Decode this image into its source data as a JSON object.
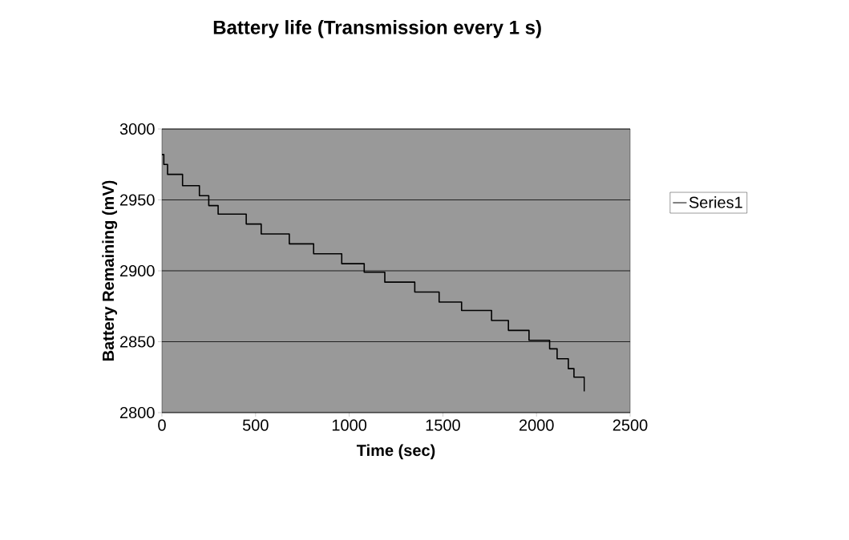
{
  "chart_data": {
    "type": "step",
    "title": "Battery life (Transmission every 1 s)",
    "xlabel": "Time (sec)",
    "ylabel": "Battery Remaining (mV)",
    "x": [
      0,
      10,
      30,
      110,
      200,
      250,
      300,
      450,
      530,
      680,
      810,
      960,
      1080,
      1190,
      1350,
      1480,
      1600,
      1760,
      1850,
      1960,
      2070,
      2110,
      2170,
      2200,
      2255
    ],
    "series": [
      {
        "name": "Series1",
        "color": "#000000",
        "values": [
          2982,
          2975,
          2968,
          2960,
          2953,
          2946,
          2940,
          2933,
          2926,
          2919,
          2912,
          2905,
          2899,
          2892,
          2885,
          2878,
          2872,
          2865,
          2858,
          2851,
          2845,
          2838,
          2831,
          2825,
          2815
        ]
      }
    ],
    "xlim": [
      0,
      2500
    ],
    "xticks": [
      0,
      500,
      1000,
      1500,
      2000,
      2500
    ],
    "ylim": [
      2800,
      3000
    ],
    "yticks": [
      2800,
      2850,
      2900,
      2950,
      3000
    ],
    "grid": "y",
    "legend": "right",
    "marker": "none",
    "line_style": "solid"
  }
}
